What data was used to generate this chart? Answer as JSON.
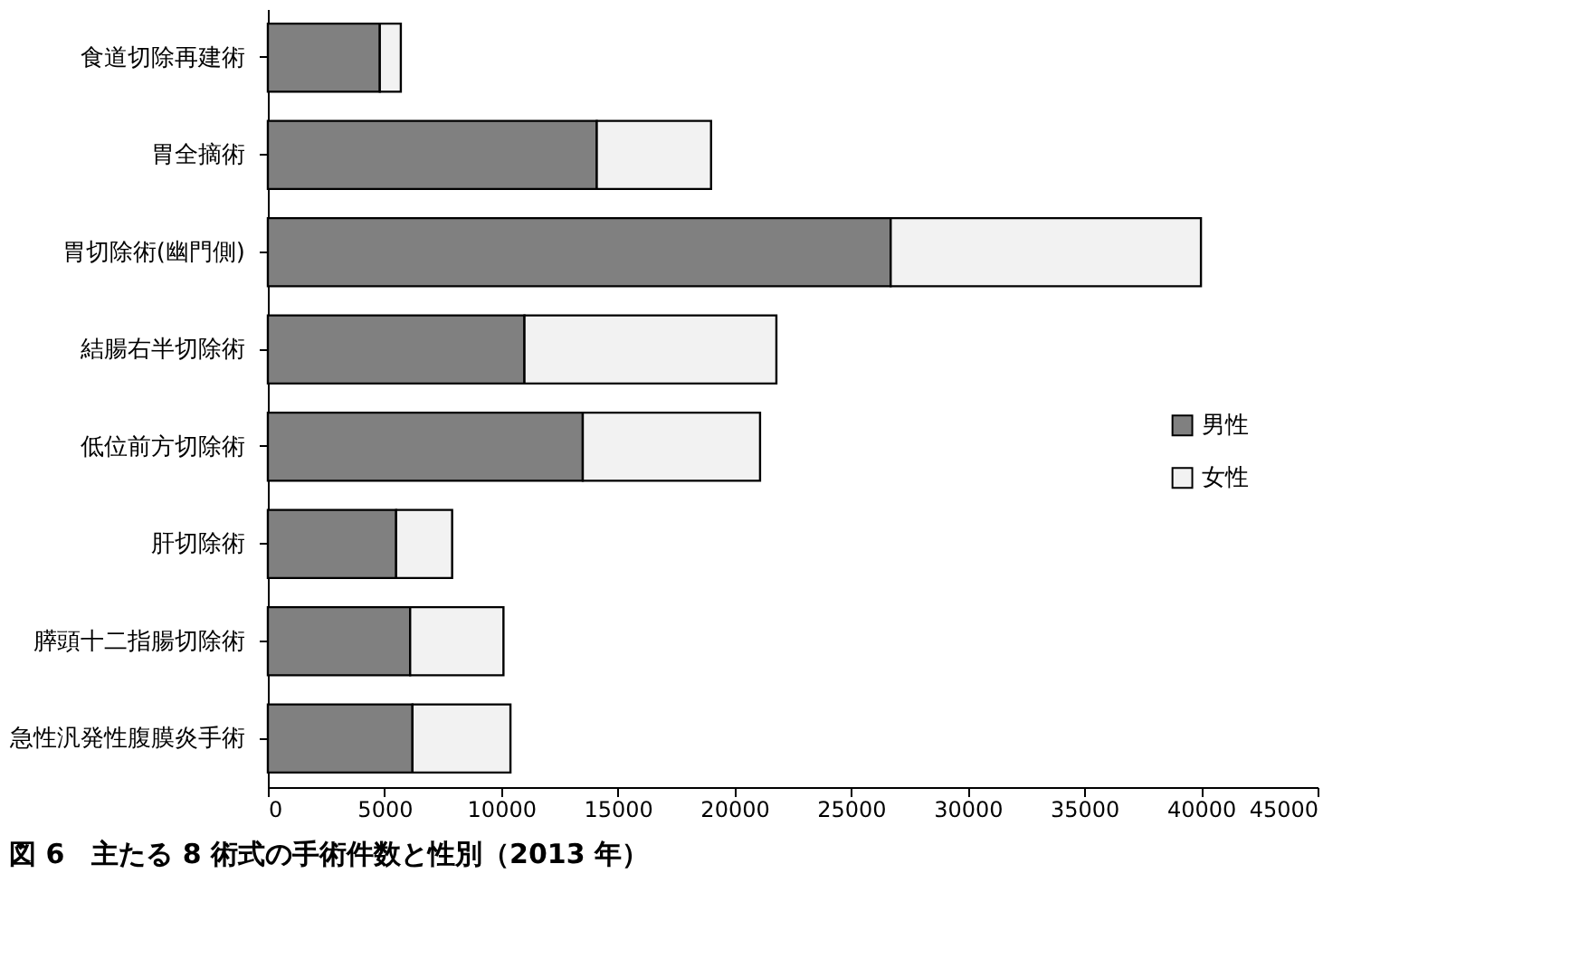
{
  "chart_data": {
    "type": "bar",
    "orientation": "horizontal",
    "stacked": true,
    "title": "図 6　主たる 8 術式の手術件数と性別（2013 年）",
    "categories": [
      "食道切除再建術",
      "胃全摘術",
      "胃切除術(幽門側)",
      "結腸右半切除術",
      "低位前方切除術",
      "肝切除術",
      "膵頭十二指腸切除術",
      "急性汎発性腹膜炎手術"
    ],
    "series": [
      {
        "name": "男性",
        "color": "#808080",
        "values": [
          4800,
          14100,
          26700,
          11000,
          13500,
          5500,
          6100,
          6200
        ]
      },
      {
        "name": "女性",
        "color": "#f2f2f2",
        "values": [
          900,
          4900,
          13300,
          10800,
          7600,
          2400,
          4000,
          4200
        ]
      }
    ],
    "xlim": [
      0,
      45000
    ],
    "xticks": [
      0,
      5000,
      10000,
      15000,
      20000,
      25000,
      30000,
      35000,
      40000,
      45000
    ],
    "grid": false,
    "legend": "right"
  }
}
